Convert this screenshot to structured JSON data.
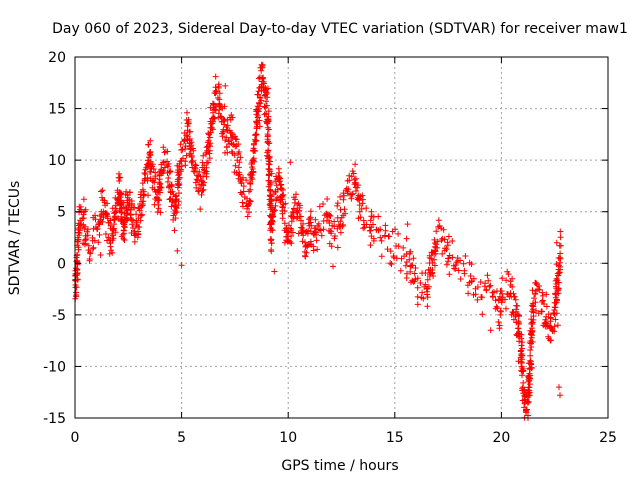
{
  "chart_data": {
    "type": "scatter",
    "title": "Day 060 of 2023, Sidereal Day-to-day VTEC variation (SDTVAR) for receiver maw1",
    "xlabel": "GPS time / hours",
    "ylabel": "SDTVAR / TECUs",
    "xlim": [
      0,
      25
    ],
    "ylim": [
      -15,
      20
    ],
    "xticks": [
      0,
      5,
      10,
      15,
      20,
      25
    ],
    "yticks": [
      -15,
      -10,
      -5,
      0,
      5,
      10,
      15,
      20
    ],
    "grid": true,
    "marker": "+",
    "color": "#ff0000",
    "series": [
      {
        "name": "SDTVAR",
        "trace": [
          [
            0.0,
            -3.0
          ],
          [
            0.05,
            -1.0
          ],
          [
            0.1,
            0.5
          ],
          [
            0.2,
            3.5
          ],
          [
            0.35,
            4.5
          ],
          [
            0.5,
            2.5
          ],
          [
            0.7,
            1.5
          ],
          [
            0.9,
            2.5
          ],
          [
            1.1,
            3.5
          ],
          [
            1.3,
            5.5
          ],
          [
            1.5,
            4.0
          ],
          [
            1.7,
            2.0
          ],
          [
            1.9,
            5.0
          ],
          [
            2.1,
            7.5
          ],
          [
            2.3,
            3.0
          ],
          [
            2.5,
            6.5
          ],
          [
            2.7,
            4.5
          ],
          [
            2.9,
            3.0
          ],
          [
            3.1,
            5.5
          ],
          [
            3.3,
            8.0
          ],
          [
            3.5,
            10.5
          ],
          [
            3.7,
            8.0
          ],
          [
            3.9,
            6.0
          ],
          [
            4.1,
            9.5
          ],
          [
            4.3,
            10.0
          ],
          [
            4.5,
            7.5
          ],
          [
            4.7,
            5.0
          ],
          [
            4.9,
            9.0
          ],
          [
            5.1,
            11.0
          ],
          [
            5.3,
            13.0
          ],
          [
            5.5,
            10.0
          ],
          [
            5.7,
            8.5
          ],
          [
            5.9,
            7.0
          ],
          [
            6.1,
            9.0
          ],
          [
            6.3,
            12.0
          ],
          [
            6.5,
            15.0
          ],
          [
            6.7,
            16.5
          ],
          [
            6.9,
            14.0
          ],
          [
            7.1,
            12.0
          ],
          [
            7.3,
            13.5
          ],
          [
            7.5,
            11.0
          ],
          [
            7.7,
            9.0
          ],
          [
            7.9,
            7.0
          ],
          [
            8.1,
            6.0
          ],
          [
            8.3,
            9.0
          ],
          [
            8.5,
            13.0
          ],
          [
            8.7,
            17.5
          ],
          [
            8.8,
            18.5
          ],
          [
            9.0,
            15.0
          ],
          [
            9.1,
            10.0
          ],
          [
            9.2,
            3.0
          ],
          [
            9.4,
            6.5
          ],
          [
            9.6,
            8.0
          ],
          [
            9.8,
            4.5
          ],
          [
            10.0,
            2.5
          ],
          [
            10.2,
            4.0
          ],
          [
            10.4,
            5.5
          ],
          [
            10.6,
            3.5
          ],
          [
            10.8,
            2.0
          ],
          [
            11.0,
            4.0
          ],
          [
            11.2,
            2.0
          ],
          [
            11.5,
            3.5
          ],
          [
            11.8,
            4.5
          ],
          [
            12.0,
            2.5
          ],
          [
            12.3,
            3.5
          ],
          [
            12.6,
            5.5
          ],
          [
            12.9,
            7.0
          ],
          [
            13.1,
            8.0
          ],
          [
            13.3,
            6.5
          ],
          [
            13.5,
            5.0
          ],
          [
            13.8,
            4.5
          ],
          [
            14.0,
            3.0
          ],
          [
            14.3,
            2.5
          ],
          [
            14.6,
            2.5
          ],
          [
            14.9,
            1.5
          ],
          [
            15.2,
            1.0
          ],
          [
            15.5,
            0.5
          ],
          [
            15.8,
            -1.0
          ],
          [
            16.1,
            -2.5
          ],
          [
            16.4,
            -3.0
          ],
          [
            16.7,
            0.0
          ],
          [
            17.0,
            3.0
          ],
          [
            17.3,
            2.0
          ],
          [
            17.6,
            0.5
          ],
          [
            17.9,
            -0.5
          ],
          [
            18.2,
            -1.0
          ],
          [
            18.5,
            -1.5
          ],
          [
            18.8,
            -2.5
          ],
          [
            19.1,
            -3.0
          ],
          [
            19.4,
            -2.5
          ],
          [
            19.7,
            -3.5
          ],
          [
            19.9,
            -4.5
          ],
          [
            20.1,
            -3.0
          ],
          [
            20.3,
            -2.5
          ],
          [
            20.5,
            -3.5
          ],
          [
            20.7,
            -5.0
          ],
          [
            20.9,
            -8.0
          ],
          [
            21.0,
            -11.0
          ],
          [
            21.1,
            -13.0
          ],
          [
            21.2,
            -14.5
          ],
          [
            21.3,
            -12.0
          ],
          [
            21.4,
            -7.0
          ],
          [
            21.5,
            -4.0
          ],
          [
            21.7,
            -3.0
          ],
          [
            21.9,
            -3.5
          ],
          [
            22.1,
            -5.0
          ],
          [
            22.3,
            -6.5
          ],
          [
            22.5,
            -5.0
          ],
          [
            22.6,
            -3.0
          ],
          [
            22.7,
            -1.0
          ],
          [
            22.8,
            1.5
          ]
        ],
        "isolated_points": [
          [
            0.25,
            3.8
          ],
          [
            0.5,
            5.2
          ],
          [
            1.2,
            0.8
          ],
          [
            2.05,
            8.3
          ],
          [
            4.8,
            1.2
          ],
          [
            5.0,
            -0.2
          ],
          [
            7.05,
            17.2
          ],
          [
            6.6,
            18.1
          ],
          [
            9.35,
            -0.8
          ],
          [
            9.2,
            1.3
          ],
          [
            10.1,
            9.8
          ],
          [
            12.1,
            -0.3
          ],
          [
            15.6,
            3.8
          ],
          [
            19.5,
            -6.5
          ],
          [
            20.5,
            -1.5
          ],
          [
            20.8,
            -9.5
          ],
          [
            21.25,
            -15.0
          ],
          [
            22.7,
            -12.0
          ],
          [
            22.75,
            -12.8
          ],
          [
            22.6,
            2.0
          ],
          [
            22.65,
            -6.0
          ]
        ]
      }
    ]
  }
}
